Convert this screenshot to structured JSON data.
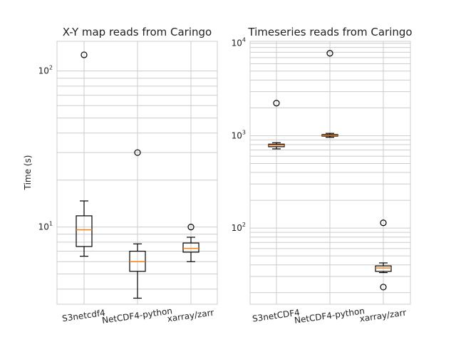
{
  "chart_data": [
    {
      "type": "box",
      "title": "X-Y map reads from Caringo",
      "ylabel": "Time (s)",
      "xlabel": "",
      "yscale": "log",
      "ylim": [
        3.2,
        155
      ],
      "y_ticks": [
        {
          "base": "10",
          "exp": "1",
          "value": 10
        },
        {
          "base": "10",
          "exp": "2",
          "value": 100
        }
      ],
      "grid": true,
      "categories": [
        "S3netcdf4",
        "NetCDF4-python",
        "xarray/zarr"
      ],
      "boxes": [
        {
          "whisker_low": 6.5,
          "q1": 7.5,
          "median": 9.6,
          "q3": 11.8,
          "whisker_high": 14.7,
          "fliers": [
            127
          ]
        },
        {
          "whisker_low": 3.5,
          "q1": 5.2,
          "median": 6.0,
          "q3": 7.0,
          "whisker_high": 7.8,
          "fliers": [
            30
          ]
        },
        {
          "whisker_low": 6.0,
          "q1": 6.9,
          "median": 7.3,
          "q3": 7.9,
          "whisker_high": 8.6,
          "fliers": [
            10
          ]
        }
      ]
    },
    {
      "type": "box",
      "title": "Timeseries reads from Caringo",
      "ylabel": "",
      "xlabel": "",
      "yscale": "log",
      "ylim": [
        15,
        10500
      ],
      "y_ticks": [
        {
          "base": "10",
          "exp": "2",
          "value": 100
        },
        {
          "base": "10",
          "exp": "3",
          "value": 1000
        },
        {
          "base": "10",
          "exp": "4",
          "value": 10000
        }
      ],
      "grid": true,
      "categories": [
        "S3netCDF4",
        "NetCDF4-python",
        "xarray/zarr"
      ],
      "boxes": [
        {
          "whisker_low": 720,
          "q1": 760,
          "median": 790,
          "q3": 810,
          "whisker_high": 840,
          "fliers": [
            2250
          ]
        },
        {
          "whisker_low": 960,
          "q1": 990,
          "median": 1010,
          "q3": 1030,
          "whisker_high": 1060,
          "fliers": [
            7800
          ]
        },
        {
          "whisker_low": 33,
          "q1": 34,
          "median": 37,
          "q3": 39,
          "whisker_high": 42,
          "fliers": [
            114,
            23
          ]
        }
      ]
    }
  ],
  "style": {
    "box_color": "#000000",
    "median_color": "#ff7f0e",
    "grid_color": "#cccccc",
    "background": "#ffffff"
  }
}
